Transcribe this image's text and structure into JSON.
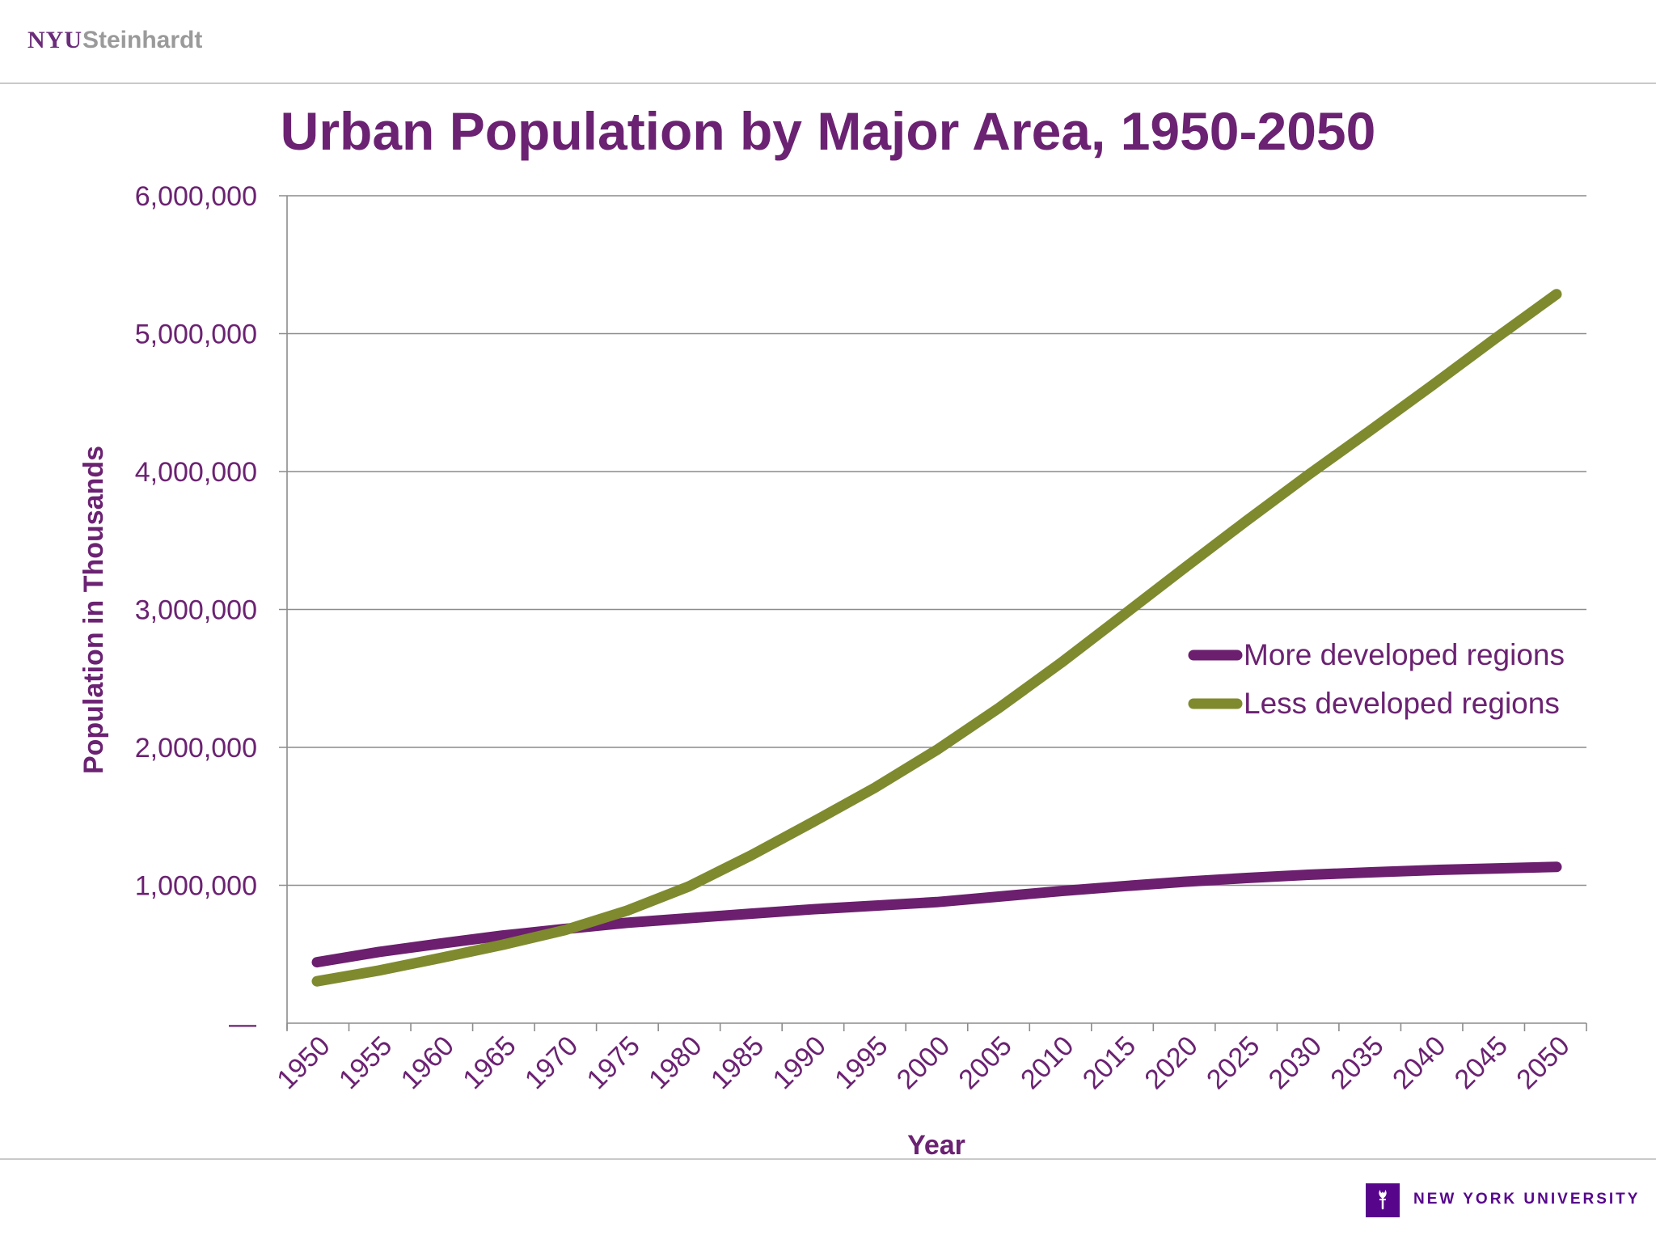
{
  "header": {
    "brand_primary": "NYU",
    "brand_secondary": "Steinhardt"
  },
  "footer": {
    "university_name": "NEW YORK UNIVERSITY",
    "logo_icon": "torch-icon"
  },
  "colors": {
    "brand_purple": "#6b2272",
    "series_more_developed": "#6b1f6e",
    "series_less_developed": "#7f8a2e",
    "gridline": "#8c8c8c"
  },
  "chart_data": {
    "type": "line",
    "title": "Urban Population by Major Area, 1950-2050",
    "xlabel": "Year",
    "ylabel": "Population in Thousands",
    "x": [
      1950,
      1955,
      1960,
      1965,
      1970,
      1975,
      1980,
      1985,
      1990,
      1995,
      2000,
      2005,
      2010,
      2015,
      2020,
      2025,
      2030,
      2035,
      2040,
      2045,
      2050
    ],
    "ylim": [
      0,
      6000000
    ],
    "yticks": [
      0,
      1000000,
      2000000,
      3000000,
      4000000,
      5000000,
      6000000
    ],
    "ytick_labels": [
      "—",
      "1,000,000",
      "2,000,000",
      "3,000,000",
      "4,000,000",
      "5,000,000",
      "6,000,000"
    ],
    "grid": "horizontal",
    "legend_position": "right",
    "series": [
      {
        "name": "More developed regions",
        "color": "#6b1f6e",
        "values": [
          442000,
          517000,
          578000,
          636000,
          683000,
          728000,
          761000,
          794000,
          826000,
          852000,
          878000,
          918000,
          958000,
          993000,
          1026000,
          1053000,
          1076000,
          1094000,
          1110000,
          1122000,
          1133000
        ]
      },
      {
        "name": "Less developed regions",
        "color": "#7f8a2e",
        "values": [
          304000,
          382000,
          474000,
          569000,
          675000,
          816000,
          992000,
          1216000,
          1458000,
          1707000,
          1981000,
          2285000,
          2611000,
          2956000,
          3302000,
          3644000,
          3978000,
          4300000,
          4627000,
          4961000,
          5286000
        ]
      }
    ]
  }
}
